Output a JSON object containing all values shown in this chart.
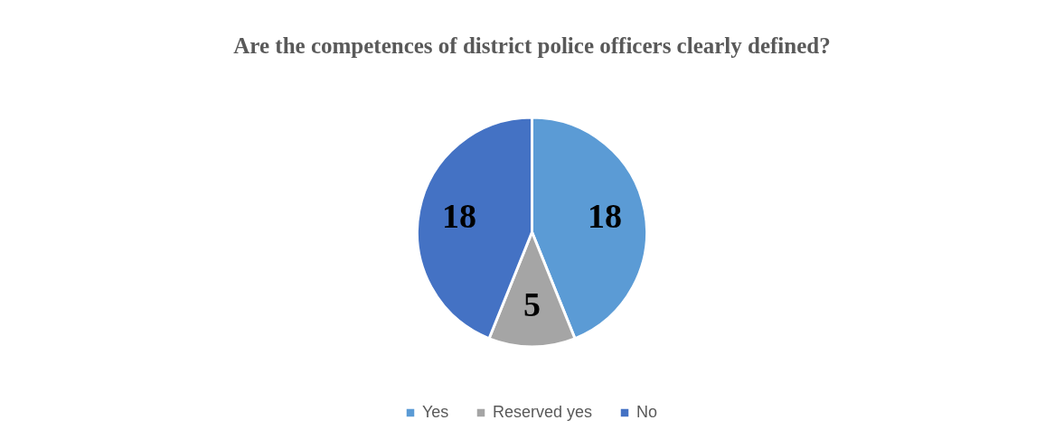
{
  "chart_data": {
    "type": "pie",
    "title": "Are the competences of district police officers clearly defined?",
    "categories": [
      "Yes",
      "Reserved yes",
      "No"
    ],
    "values": [
      18,
      5,
      18
    ],
    "colors": [
      "#5b9bd5",
      "#a5a5a5",
      "#4472c4"
    ],
    "data_labels": true,
    "legend": "bottom"
  }
}
